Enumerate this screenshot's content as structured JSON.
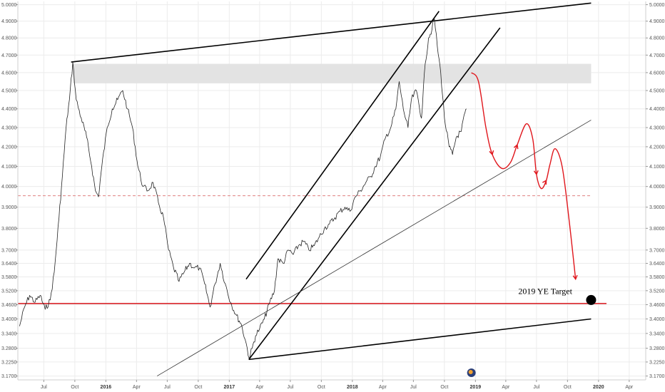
{
  "chart_data": {
    "type": "line",
    "title": "",
    "y_axis": {
      "scale": "log",
      "range": [
        3.155,
        5.02
      ],
      "tick_labels": [
        "5.0000",
        "4.9000",
        "4.8000",
        "4.7000",
        "4.6000",
        "4.5000",
        "4.4000",
        "4.3000",
        "4.2000",
        "4.1000",
        "4.0000",
        "3.9000",
        "3.8000",
        "3.7000",
        "3.6400",
        "3.5800",
        "3.5200",
        "3.4600",
        "3.4000",
        "3.3400",
        "3.2800",
        "3.2250",
        "3.1700"
      ],
      "tick_values": [
        5.0,
        4.9,
        4.8,
        4.7,
        4.6,
        4.5,
        4.4,
        4.3,
        4.2,
        4.1,
        4.0,
        3.9,
        3.8,
        3.7,
        3.64,
        3.58,
        3.52,
        3.46,
        3.4,
        3.34,
        3.28,
        3.225,
        3.17
      ]
    },
    "x_axis": {
      "range": [
        "2015-04-15",
        "2020-05-20"
      ],
      "ticks": [
        {
          "label": "Jul",
          "date": "2015-07-01",
          "bold": false
        },
        {
          "label": "Oct",
          "date": "2015-10-01",
          "bold": false
        },
        {
          "label": "2016",
          "date": "2016-01-01",
          "bold": true
        },
        {
          "label": "Apr",
          "date": "2016-04-01",
          "bold": false
        },
        {
          "label": "Jul",
          "date": "2016-07-01",
          "bold": false
        },
        {
          "label": "Oct",
          "date": "2016-10-01",
          "bold": false
        },
        {
          "label": "2017",
          "date": "2017-01-01",
          "bold": true
        },
        {
          "label": "Apr",
          "date": "2017-04-01",
          "bold": false
        },
        {
          "label": "Jul",
          "date": "2017-07-01",
          "bold": false
        },
        {
          "label": "Oct",
          "date": "2017-10-01",
          "bold": false
        },
        {
          "label": "2018",
          "date": "2018-01-01",
          "bold": true
        },
        {
          "label": "Apr",
          "date": "2018-04-01",
          "bold": false
        },
        {
          "label": "Jul",
          "date": "2018-07-01",
          "bold": false
        },
        {
          "label": "Oct",
          "date": "2018-10-01",
          "bold": false
        },
        {
          "label": "2019",
          "date": "2019-01-01",
          "bold": true
        },
        {
          "label": "Apr",
          "date": "2019-04-01",
          "bold": false
        },
        {
          "label": "Jul",
          "date": "2019-07-01",
          "bold": false
        },
        {
          "label": "Oct",
          "date": "2019-10-01",
          "bold": false
        },
        {
          "label": "2020",
          "date": "2020-01-01",
          "bold": true
        },
        {
          "label": "Apr",
          "date": "2020-04-01",
          "bold": false
        }
      ]
    },
    "grid": true,
    "series": [
      {
        "color": "#222222",
        "points": [
          [
            "2015-04-20",
            3.37
          ],
          [
            "2015-05-05",
            3.45
          ],
          [
            "2015-05-20",
            3.5
          ],
          [
            "2015-06-05",
            3.47
          ],
          [
            "2015-06-20",
            3.5
          ],
          [
            "2015-07-05",
            3.44
          ],
          [
            "2015-07-20",
            3.48
          ],
          [
            "2015-08-01",
            3.6
          ],
          [
            "2015-08-15",
            3.85
          ],
          [
            "2015-08-25",
            4.05
          ],
          [
            "2015-09-05",
            4.3
          ],
          [
            "2015-09-15",
            4.45
          ],
          [
            "2015-09-25",
            4.66
          ],
          [
            "2015-10-05",
            4.45
          ],
          [
            "2015-10-20",
            4.35
          ],
          [
            "2015-11-05",
            4.25
          ],
          [
            "2015-11-20",
            4.1
          ],
          [
            "2015-12-01",
            3.98
          ],
          [
            "2015-12-10",
            3.95
          ],
          [
            "2015-12-20",
            4.1
          ],
          [
            "2016-01-05",
            4.3
          ],
          [
            "2016-01-20",
            4.4
          ],
          [
            "2016-02-05",
            4.45
          ],
          [
            "2016-02-20",
            4.5
          ],
          [
            "2016-03-05",
            4.4
          ],
          [
            "2016-03-20",
            4.3
          ],
          [
            "2016-04-05",
            4.1
          ],
          [
            "2016-04-20",
            4.0
          ],
          [
            "2016-05-05",
            3.98
          ],
          [
            "2016-05-20",
            4.02
          ],
          [
            "2016-06-05",
            3.92
          ],
          [
            "2016-06-20",
            3.85
          ],
          [
            "2016-07-05",
            3.7
          ],
          [
            "2016-07-20",
            3.62
          ],
          [
            "2016-08-05",
            3.56
          ],
          [
            "2016-08-20",
            3.6
          ],
          [
            "2016-09-05",
            3.64
          ],
          [
            "2016-09-20",
            3.62
          ],
          [
            "2016-10-05",
            3.62
          ],
          [
            "2016-10-20",
            3.55
          ],
          [
            "2016-11-05",
            3.45
          ],
          [
            "2016-11-20",
            3.55
          ],
          [
            "2016-12-05",
            3.64
          ],
          [
            "2016-12-20",
            3.55
          ],
          [
            "2017-01-05",
            3.47
          ],
          [
            "2017-01-20",
            3.42
          ],
          [
            "2017-02-05",
            3.38
          ],
          [
            "2017-02-20",
            3.3
          ],
          [
            "2017-03-01",
            3.24
          ],
          [
            "2017-03-10",
            3.28
          ],
          [
            "2017-03-20",
            3.33
          ],
          [
            "2017-04-01",
            3.36
          ],
          [
            "2017-04-15",
            3.4
          ],
          [
            "2017-05-01",
            3.47
          ],
          [
            "2017-05-15",
            3.52
          ],
          [
            "2017-05-25",
            3.66
          ],
          [
            "2017-06-10",
            3.64
          ],
          [
            "2017-06-25",
            3.7
          ],
          [
            "2017-07-10",
            3.68
          ],
          [
            "2017-07-25",
            3.72
          ],
          [
            "2017-08-10",
            3.74
          ],
          [
            "2017-08-25",
            3.7
          ],
          [
            "2017-09-10",
            3.72
          ],
          [
            "2017-09-25",
            3.76
          ],
          [
            "2017-10-10",
            3.8
          ],
          [
            "2017-10-25",
            3.82
          ],
          [
            "2017-11-10",
            3.85
          ],
          [
            "2017-11-25",
            3.88
          ],
          [
            "2017-12-10",
            3.9
          ],
          [
            "2017-12-25",
            3.88
          ],
          [
            "2018-01-10",
            3.95
          ],
          [
            "2018-01-25",
            3.98
          ],
          [
            "2018-02-10",
            4.02
          ],
          [
            "2018-02-25",
            4.05
          ],
          [
            "2018-03-10",
            4.1
          ],
          [
            "2018-03-25",
            4.15
          ],
          [
            "2018-04-10",
            4.25
          ],
          [
            "2018-04-25",
            4.3
          ],
          [
            "2018-05-10",
            4.4
          ],
          [
            "2018-05-20",
            4.55
          ],
          [
            "2018-06-01",
            4.4
          ],
          [
            "2018-06-15",
            4.3
          ],
          [
            "2018-06-25",
            4.45
          ],
          [
            "2018-07-10",
            4.5
          ],
          [
            "2018-07-25",
            4.35
          ],
          [
            "2018-08-05",
            4.65
          ],
          [
            "2018-08-15",
            4.8
          ],
          [
            "2018-08-25",
            4.85
          ],
          [
            "2018-09-01",
            4.92
          ],
          [
            "2018-09-10",
            4.75
          ],
          [
            "2018-09-20",
            4.6
          ],
          [
            "2018-10-01",
            4.35
          ],
          [
            "2018-10-15",
            4.2
          ],
          [
            "2018-10-25",
            4.16
          ],
          [
            "2018-11-05",
            4.25
          ],
          [
            "2018-11-20",
            4.28
          ],
          [
            "2018-12-01",
            4.38
          ],
          [
            "2018-12-05",
            4.4
          ]
        ]
      }
    ],
    "trendlines": [
      {
        "from": [
          "2015-09-20",
          4.66
        ],
        "to": [
          "2019-12-10",
          5.01
        ],
        "color": "#000000"
      },
      {
        "from": [
          "2017-02-20",
          3.57
        ],
        "to": [
          "2018-09-15",
          4.96
        ],
        "color": "#000000"
      },
      {
        "from": [
          "2017-02-28",
          3.235
        ],
        "to": [
          "2019-03-15",
          4.86
        ],
        "color": "#000000"
      },
      {
        "from": [
          "2017-02-28",
          3.235
        ],
        "to": [
          "2019-12-10",
          3.4
        ],
        "color": "#000000"
      },
      {
        "from": [
          "2016-06-01",
          3.17
        ],
        "to": [
          "2019-12-10",
          4.34
        ],
        "color": "#333333"
      }
    ],
    "resistance_zone": {
      "low": 4.54,
      "high": 4.65,
      "start": "2015-09-25",
      "end": "2019-12-10",
      "color": "#e3e3e3"
    },
    "horizontal_lines": [
      {
        "value": 3.465,
        "style": "solid",
        "color": "#d9262c"
      },
      {
        "value": 3.955,
        "style": "dashed",
        "color": "#e08080"
      }
    ],
    "projection": {
      "color": "#e0161c",
      "points": [
        [
          "2018-12-20",
          4.6
        ],
        [
          "2019-01-10",
          4.55
        ],
        [
          "2019-02-01",
          4.3
        ],
        [
          "2019-02-20",
          4.16
        ],
        [
          "2019-03-20",
          4.09
        ],
        [
          "2019-04-15",
          4.12
        ],
        [
          "2019-05-05",
          4.21
        ],
        [
          "2019-06-01",
          4.32
        ],
        [
          "2019-06-20",
          4.24
        ],
        [
          "2019-07-01",
          4.06
        ],
        [
          "2019-07-15",
          3.99
        ],
        [
          "2019-07-30",
          4.03
        ],
        [
          "2019-08-10",
          4.11
        ],
        [
          "2019-08-25",
          4.19
        ],
        [
          "2019-09-15",
          4.1
        ],
        [
          "2019-10-05",
          3.85
        ],
        [
          "2019-10-25",
          3.57
        ]
      ]
    },
    "annotations": [
      {
        "text": "2019 YE Target",
        "date": "2019-10-15",
        "value": 3.505,
        "marker_date": "2019-12-10",
        "marker_value": 3.48,
        "marker": "black-dot"
      }
    ]
  }
}
